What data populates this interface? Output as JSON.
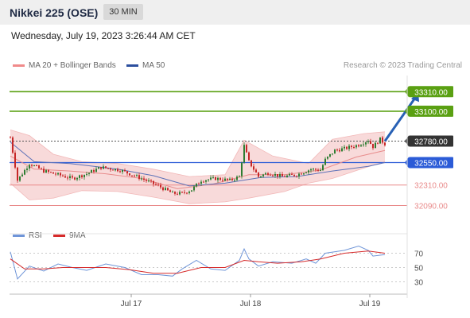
{
  "header": {
    "title": "Nikkei 225 (OSE)",
    "timeframe": "30 MIN"
  },
  "timestamp": "Wednesday, July 19, 2023 3:26:44 AM CET",
  "legend_top": [
    {
      "label": "MA 20 + Bollinger Bands",
      "color": "#f08a8a"
    },
    {
      "label": "MA 50",
      "color": "#2c4f9e"
    }
  ],
  "source": "Research © 2023 Trading Central",
  "legend_bottom": [
    {
      "label": "RSI",
      "color": "#6f95d8"
    },
    {
      "label": "9MA",
      "color": "#d62b2b"
    }
  ],
  "colors": {
    "green_level": "#5aa012",
    "blue_level": "#2b5bd7",
    "red_level": "#e98a8a",
    "current": "#333333",
    "arrow": "#2861b5",
    "band": "#f7d4d4",
    "candle_up": "#2e7d32",
    "candle_down": "#c62828"
  },
  "chart_data": [
    {
      "type": "candlestick",
      "title": "Nikkei 225 (OSE)",
      "ylim": [
        31950,
        33440
      ],
      "x_ticks": [
        "Jul 17",
        "Jul 18",
        "Jul 19"
      ],
      "levels": [
        {
          "label": "33310.00",
          "value": 33310,
          "kind": "resistance",
          "color": "#5aa012"
        },
        {
          "label": "33100.00",
          "value": 33100,
          "kind": "resistance",
          "color": "#5aa012"
        },
        {
          "label": "32780.00",
          "value": 32780,
          "kind": "current",
          "color": "#333333"
        },
        {
          "label": "32550.00",
          "value": 32550,
          "kind": "pivot",
          "color": "#2b5bd7"
        },
        {
          "label": "32310.00",
          "value": 32310,
          "kind": "support",
          "color": "#e98a8a"
        },
        {
          "label": "32090.00",
          "value": 32090,
          "kind": "support",
          "color": "#e98a8a"
        }
      ],
      "anchors": [
        [
          0,
          32820
        ],
        [
          3,
          32360
        ],
        [
          8,
          32540
        ],
        [
          14,
          32460
        ],
        [
          20,
          32420
        ],
        [
          26,
          32380
        ],
        [
          32,
          32430
        ],
        [
          38,
          32500
        ],
        [
          46,
          32470
        ],
        [
          55,
          32380
        ],
        [
          62,
          32300
        ],
        [
          68,
          32220
        ],
        [
          72,
          32220
        ],
        [
          76,
          32260
        ],
        [
          80,
          32360
        ],
        [
          86,
          32380
        ],
        [
          92,
          32360
        ],
        [
          96,
          32400
        ],
        [
          98,
          32730
        ],
        [
          100,
          32560
        ],
        [
          104,
          32400
        ],
        [
          108,
          32440
        ],
        [
          114,
          32400
        ],
        [
          120,
          32420
        ],
        [
          126,
          32480
        ],
        [
          130,
          32470
        ],
        [
          132,
          32580
        ],
        [
          136,
          32680
        ],
        [
          140,
          32700
        ],
        [
          146,
          32740
        ],
        [
          150,
          32790
        ],
        [
          152,
          32720
        ],
        [
          155,
          32800
        ],
        [
          157,
          32750
        ]
      ],
      "candles_count": 158,
      "ma50": [
        [
          0,
          32770
        ],
        [
          10,
          32560
        ],
        [
          25,
          32540
        ],
        [
          45,
          32480
        ],
        [
          60,
          32410
        ],
        [
          75,
          32300
        ],
        [
          90,
          32330
        ],
        [
          105,
          32390
        ],
        [
          120,
          32400
        ],
        [
          135,
          32460
        ],
        [
          150,
          32510
        ],
        [
          157,
          32550
        ]
      ],
      "ma20": [
        [
          0,
          32620
        ],
        [
          10,
          32480
        ],
        [
          25,
          32460
        ],
        [
          40,
          32430
        ],
        [
          55,
          32380
        ],
        [
          70,
          32270
        ],
        [
          85,
          32320
        ],
        [
          100,
          32420
        ],
        [
          115,
          32420
        ],
        [
          130,
          32470
        ],
        [
          145,
          32610
        ],
        [
          157,
          32680
        ]
      ],
      "bb_upper": [
        [
          0,
          32900
        ],
        [
          8,
          32840
        ],
        [
          18,
          32640
        ],
        [
          30,
          32560
        ],
        [
          45,
          32540
        ],
        [
          60,
          32480
        ],
        [
          75,
          32400
        ],
        [
          90,
          32420
        ],
        [
          98,
          32790
        ],
        [
          110,
          32620
        ],
        [
          125,
          32540
        ],
        [
          135,
          32800
        ],
        [
          148,
          32860
        ],
        [
          157,
          32880
        ]
      ],
      "bb_lower": [
        [
          0,
          32330
        ],
        [
          8,
          32150
        ],
        [
          18,
          32170
        ],
        [
          30,
          32250
        ],
        [
          45,
          32240
        ],
        [
          60,
          32180
        ],
        [
          75,
          32110
        ],
        [
          90,
          32130
        ],
        [
          100,
          32170
        ],
        [
          115,
          32240
        ],
        [
          125,
          32330
        ],
        [
          135,
          32380
        ],
        [
          148,
          32490
        ],
        [
          157,
          32560
        ]
      ],
      "arrow": {
        "from": [
          157,
          32780
        ],
        "to": [
          171,
          33310
        ]
      }
    },
    {
      "type": "line",
      "title": "RSI",
      "ylim": [
        15,
        85
      ],
      "y_ticks": [
        30,
        50,
        70
      ],
      "series": [
        {
          "name": "RSI",
          "points": [
            [
              0,
              72
            ],
            [
              3,
              34
            ],
            [
              8,
              52
            ],
            [
              14,
              45
            ],
            [
              20,
              55
            ],
            [
              26,
              50
            ],
            [
              32,
              46
            ],
            [
              40,
              55
            ],
            [
              48,
              50
            ],
            [
              55,
              40
            ],
            [
              62,
              40
            ],
            [
              68,
              38
            ],
            [
              72,
              48
            ],
            [
              78,
              60
            ],
            [
              84,
              48
            ],
            [
              90,
              46
            ],
            [
              96,
              60
            ],
            [
              98,
              76
            ],
            [
              100,
              62
            ],
            [
              104,
              52
            ],
            [
              110,
              58
            ],
            [
              118,
              56
            ],
            [
              124,
              62
            ],
            [
              128,
              56
            ],
            [
              132,
              70
            ],
            [
              140,
              74
            ],
            [
              146,
              80
            ],
            [
              150,
              74
            ],
            [
              152,
              66
            ],
            [
              157,
              68
            ]
          ]
        },
        {
          "name": "9MA",
          "points": [
            [
              0,
              62
            ],
            [
              6,
              48
            ],
            [
              14,
              48
            ],
            [
              22,
              50
            ],
            [
              30,
              50
            ],
            [
              40,
              50
            ],
            [
              50,
              47
            ],
            [
              60,
              42
            ],
            [
              70,
              42
            ],
            [
              80,
              50
            ],
            [
              90,
              50
            ],
            [
              98,
              60
            ],
            [
              104,
              58
            ],
            [
              112,
              56
            ],
            [
              122,
              58
            ],
            [
              130,
              62
            ],
            [
              140,
              70
            ],
            [
              150,
              73
            ],
            [
              157,
              70
            ]
          ]
        }
      ]
    }
  ]
}
